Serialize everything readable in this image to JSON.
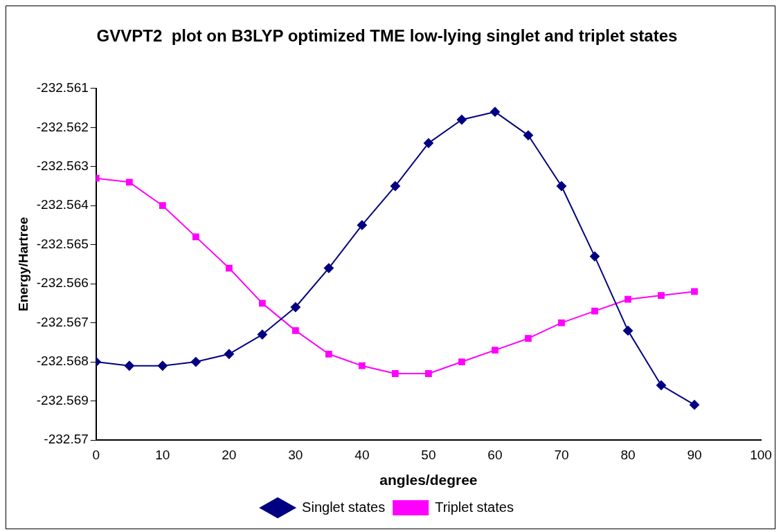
{
  "chart_data": {
    "type": "line",
    "title": "GVVPT2  plot on B3LYP optimized TME low-lying singlet and triplet states",
    "xlabel": "angles/degree",
    "ylabel": "Energy/Hartree",
    "x": [
      0,
      5,
      10,
      15,
      20,
      25,
      30,
      35,
      40,
      45,
      50,
      55,
      60,
      65,
      70,
      75,
      80,
      85,
      90
    ],
    "series": [
      {
        "name": "Singlet states",
        "color": "#000080",
        "marker": "diamond",
        "values": [
          -232.568,
          -232.5681,
          -232.5681,
          -232.568,
          -232.5678,
          -232.5673,
          -232.5666,
          -232.5656,
          -232.5645,
          -232.5635,
          -232.5624,
          -232.5618,
          -232.5616,
          -232.5622,
          -232.5635,
          -232.5653,
          -232.5672,
          -232.5686,
          -232.5691
        ]
      },
      {
        "name": "Triplet states",
        "color": "#ff00ff",
        "marker": "square",
        "values": [
          -232.5633,
          -232.5634,
          -232.564,
          -232.5648,
          -232.5656,
          -232.5665,
          -232.5672,
          -232.5678,
          -232.5681,
          -232.5683,
          -232.5683,
          -232.568,
          -232.5677,
          -232.5674,
          -232.567,
          -232.5667,
          -232.5664,
          -232.5663,
          -232.5662
        ]
      }
    ],
    "xlim": [
      0,
      100
    ],
    "xticks": [
      0,
      10,
      20,
      30,
      40,
      50,
      60,
      70,
      80,
      90,
      100
    ],
    "ylim": [
      -232.57,
      -232.561
    ],
    "yticks": [
      -232.57,
      -232.569,
      -232.568,
      -232.567,
      -232.566,
      -232.565,
      -232.564,
      -232.563,
      -232.562,
      -232.561
    ],
    "grid": false,
    "legend": "bottom",
    "line_style": "solid"
  }
}
